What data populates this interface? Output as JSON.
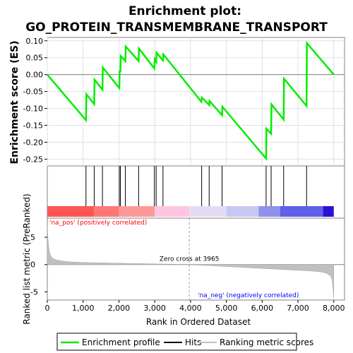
{
  "chart_data": {
    "type": "line",
    "title_line1": "Enrichment plot:",
    "title_line2": "GO_PROTEIN_TRANSMEMBRANE_TRANSPORT",
    "colors": {
      "enrichment": "#00ee00",
      "hits": "#000000",
      "ranking": "#c0c0c0",
      "pos_label": "#ff0000",
      "neg_label": "#0000ff",
      "zero_line": "#808080"
    },
    "es_panel": {
      "ylabel": "Enrichment score (ES)",
      "ylim": [
        -0.27,
        0.11
      ],
      "yticks": [
        0.1,
        0.05,
        0.0,
        -0.05,
        -0.1,
        -0.15,
        -0.2,
        -0.25
      ],
      "ytick_labels": [
        "0.10",
        "0.05",
        "0.00",
        "-0.05",
        "-0.10",
        "-0.15",
        "-0.20",
        "-0.25"
      ],
      "points": [
        [
          0,
          0.0
        ],
        [
          1080,
          -0.135
        ],
        [
          1090,
          -0.058
        ],
        [
          1310,
          -0.087
        ],
        [
          1320,
          -0.015
        ],
        [
          1540,
          -0.045
        ],
        [
          1550,
          0.021
        ],
        [
          2010,
          -0.04
        ],
        [
          2020,
          0.012
        ],
        [
          2040,
          0.008
        ],
        [
          2050,
          0.055
        ],
        [
          2180,
          0.04
        ],
        [
          2190,
          0.083
        ],
        [
          2550,
          0.04
        ],
        [
          2560,
          0.077
        ],
        [
          2990,
          0.018
        ],
        [
          3000,
          0.045
        ],
        [
          3040,
          0.038
        ],
        [
          3050,
          0.065
        ],
        [
          3230,
          0.042
        ],
        [
          3240,
          0.06
        ],
        [
          4300,
          -0.08
        ],
        [
          4320,
          -0.068
        ],
        [
          4520,
          -0.09
        ],
        [
          4530,
          -0.078
        ],
        [
          4880,
          -0.12
        ],
        [
          4890,
          -0.095
        ],
        [
          6110,
          -0.248
        ],
        [
          6120,
          -0.16
        ],
        [
          6250,
          -0.175
        ],
        [
          6260,
          -0.088
        ],
        [
          6600,
          -0.133
        ],
        [
          6610,
          -0.012
        ],
        [
          7240,
          -0.093
        ],
        [
          7250,
          0.093
        ],
        [
          8000,
          0.0
        ]
      ]
    },
    "hits": [
      1080,
      1310,
      1540,
      2010,
      2040,
      2180,
      2550,
      2990,
      3040,
      3230,
      4310,
      4520,
      4880,
      6110,
      6250,
      6600,
      7240
    ],
    "ranking_panel": {
      "ylabel": "Ranked list metric (PreRanked)",
      "ylim": [
        -6.5,
        8.5
      ],
      "yticks": [
        5,
        0,
        -5
      ],
      "ytick_labels": [
        "5",
        "0",
        "-5"
      ],
      "zero_cross_label": "Zero cross at 3965",
      "zero_cross": 3965,
      "pos_label": "'na_pos' (positively correlated)",
      "neg_label": "'na_neg' (negatively correlated)",
      "xlabel": "Rank in Ordered Dataset"
    },
    "xlim": [
      0,
      8300
    ],
    "xticks": [
      0,
      1000,
      2000,
      3000,
      4000,
      5000,
      6000,
      7000,
      8000
    ],
    "xtick_labels": [
      "0",
      "1,000",
      "2,000",
      "3,000",
      "4,000",
      "5,000",
      "6,000",
      "7,000",
      "8,000"
    ],
    "n_genes": 8000,
    "legend": {
      "entries": [
        {
          "label": "Enrichment profile",
          "color": "#00ee00"
        },
        {
          "label": "Hits",
          "color": "#000000"
        },
        {
          "label": "Ranking metric scores",
          "color": "#c0c0c0"
        }
      ]
    }
  }
}
